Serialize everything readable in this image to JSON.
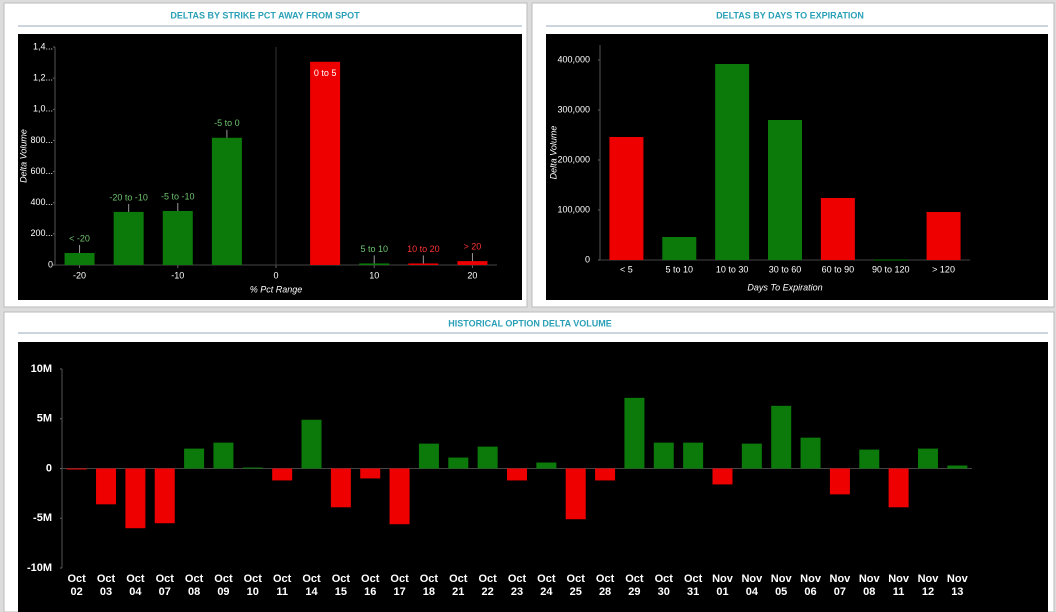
{
  "chart_data": [
    {
      "type": "bar",
      "title": "DELTAS BY STRIKE PCT AWAY FROM SPOT",
      "y_label": "Delta Volume",
      "x_label": "% Pct Range",
      "x": [
        -20,
        -15,
        -10,
        -5,
        5,
        10,
        15,
        20
      ],
      "categories": [
        "< -20",
        "-20 to -10",
        "-5 to -10",
        "-5 to 0",
        "0 to 5",
        "5 to 10",
        "10 to 20",
        "> 20"
      ],
      "values": [
        77000,
        341000,
        347000,
        817000,
        1305000,
        10000,
        10000,
        25000
      ],
      "colors": [
        "#0b7a0b",
        "#0b7a0b",
        "#0b7a0b",
        "#0b7a0b",
        "#ee0000",
        "#0b7a0b",
        "#ee0000",
        "#ee0000"
      ],
      "label_colors": [
        "#6fc46f",
        "#6fc46f",
        "#6fc46f",
        "#6fc46f",
        "#ffffff",
        "#6fc46f",
        "#ff3333",
        "#ff3333"
      ],
      "xlim": [
        -22.5,
        22.5
      ],
      "xticks": [
        -20,
        -10,
        0,
        10,
        20
      ],
      "ylim": [
        0,
        1400000
      ],
      "yticks": [
        0,
        {
          "value": 200000,
          "label": "200..."
        },
        {
          "value": 400000,
          "label": "400..."
        },
        {
          "value": 600000,
          "label": "600..."
        },
        {
          "value": 800000,
          "label": "800..."
        },
        {
          "value": 1000000,
          "label": "1,0..."
        },
        {
          "value": 1200000,
          "label": "1,2..."
        },
        {
          "value": 1400000,
          "label": "1,4..."
        }
      ]
    },
    {
      "type": "bar",
      "title": "DELTAS BY DAYS TO EXPIRATION",
      "y_label": "Delta Volume",
      "x_label": "Days To Expiration",
      "categories": [
        "< 5",
        "5 to 10",
        "10 to 30",
        "30 to 60",
        "60 to 90",
        "90 to 120",
        "> 120"
      ],
      "values": [
        246000,
        46000,
        392000,
        280000,
        124000,
        1000,
        96000
      ],
      "colors": [
        "#ee0000",
        "#0b7a0b",
        "#0b7a0b",
        "#0b7a0b",
        "#ee0000",
        "#0b7a0b",
        "#ee0000"
      ],
      "ylim": [
        0,
        430000
      ],
      "yticks": [
        0,
        {
          "value": 100000,
          "label": "100,000"
        },
        {
          "value": 200000,
          "label": "200,000"
        },
        {
          "value": 300000,
          "label": "300,000"
        },
        {
          "value": 400000,
          "label": "400,000"
        }
      ]
    },
    {
      "type": "bar",
      "title": "HISTORICAL OPTION DELTA VOLUME",
      "categories": [
        "Oct 02",
        "Oct 03",
        "Oct 04",
        "Oct 07",
        "Oct 08",
        "Oct 09",
        "Oct 10",
        "Oct 11",
        "Oct 14",
        "Oct 15",
        "Oct 16",
        "Oct 17",
        "Oct 18",
        "Oct 21",
        "Oct 22",
        "Oct 23",
        "Oct 24",
        "Oct 25",
        "Oct 28",
        "Oct 29",
        "Oct 30",
        "Oct 31",
        "Nov 01",
        "Nov 04",
        "Nov 05",
        "Nov 06",
        "Nov 07",
        "Nov 08",
        "Nov 11",
        "Nov 12",
        "Nov 13"
      ],
      "values": [
        -100000,
        -3600000,
        -6000000,
        -5500000,
        2000000,
        2600000,
        100000,
        -1200000,
        4900000,
        -3900000,
        -1000000,
        -5600000,
        2500000,
        1100000,
        2200000,
        -1200000,
        600000,
        -5100000,
        -1200000,
        7100000,
        2600000,
        2600000,
        -1600000,
        2500000,
        6300000,
        3100000,
        -2600000,
        1900000,
        -3900000,
        2000000,
        300000
      ],
      "colors": [
        "#ee0000",
        "#ee0000",
        "#ee0000",
        "#ee0000",
        "#0b7a0b",
        "#0b7a0b",
        "#0b7a0b",
        "#ee0000",
        "#0b7a0b",
        "#ee0000",
        "#ee0000",
        "#ee0000",
        "#0b7a0b",
        "#0b7a0b",
        "#0b7a0b",
        "#ee0000",
        "#0b7a0b",
        "#ee0000",
        "#ee0000",
        "#0b7a0b",
        "#0b7a0b",
        "#0b7a0b",
        "#ee0000",
        "#0b7a0b",
        "#0b7a0b",
        "#0b7a0b",
        "#ee0000",
        "#0b7a0b",
        "#ee0000",
        "#0b7a0b",
        "#0b7a0b"
      ],
      "ylim": [
        -10000000,
        10000000
      ],
      "yticks": [
        {
          "value": -10000000,
          "label": "-10M"
        },
        {
          "value": -5000000,
          "label": "-5M"
        },
        0,
        {
          "value": 5000000,
          "label": "5M"
        },
        {
          "value": 10000000,
          "label": "10M"
        }
      ]
    }
  ]
}
